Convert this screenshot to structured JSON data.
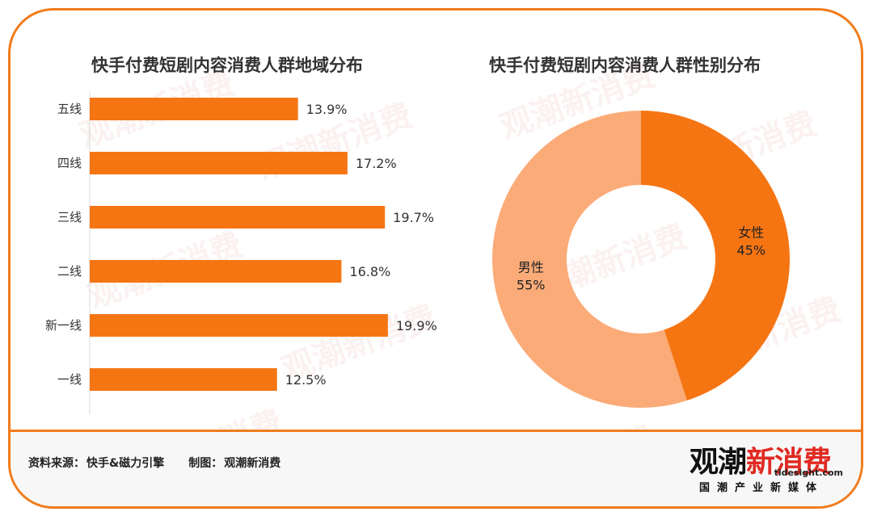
{
  "chart_data": [
    {
      "type": "bar",
      "orientation": "horizontal",
      "title": "快手付费短剧内容消费人群地域分布",
      "categories": [
        "五线",
        "四线",
        "三线",
        "二线",
        "新一线",
        "一线"
      ],
      "values": [
        13.9,
        17.2,
        19.7,
        16.8,
        19.9,
        12.5
      ],
      "value_labels": [
        "13.9%",
        "17.2%",
        "19.7%",
        "16.8%",
        "19.9%",
        "12.5%"
      ],
      "color": "#f57513",
      "xlim": [
        0,
        20.5
      ],
      "grid": false
    },
    {
      "type": "pie",
      "style": "donut",
      "title": "快手付费短剧内容消费人群性别分布",
      "slices": [
        {
          "name": "女性",
          "value": 45,
          "label": "45%",
          "color": "#f57513"
        },
        {
          "name": "男性",
          "value": 55,
          "label": "55%",
          "color": "#fbab78"
        }
      ]
    }
  ],
  "footer": {
    "source_label": "资料来源：",
    "source_value": "快手&磁力引擎",
    "made_label": "制图：",
    "made_value": "观潮新消费"
  },
  "logo": {
    "main_a": "观潮",
    "main_b": "新消费",
    "domain": "tidesight.com",
    "sub": "国潮产业新媒体"
  },
  "watermark": {
    "text": "观潮新消费"
  }
}
